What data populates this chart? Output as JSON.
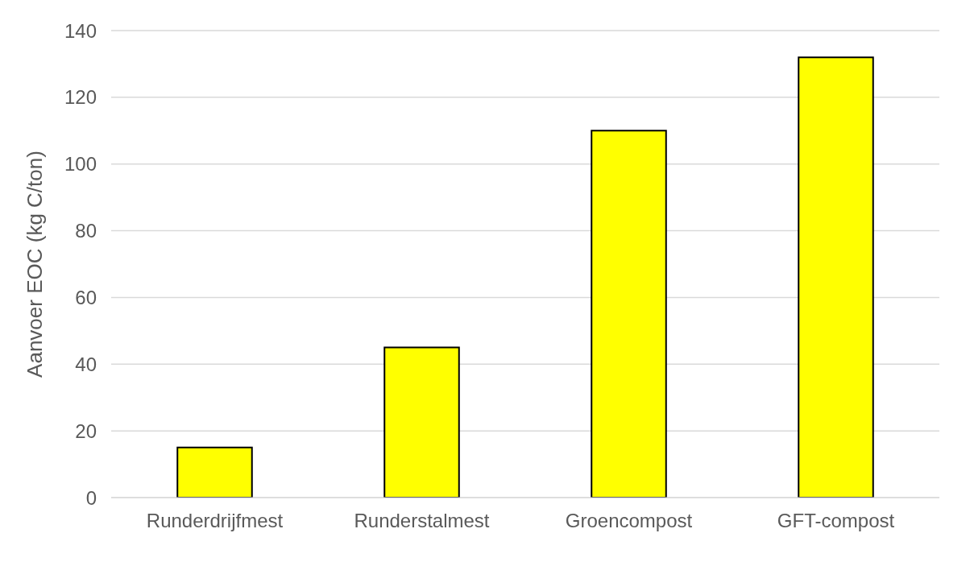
{
  "chart_data": {
    "type": "bar",
    "ylabel": "Aanvoer EOC (kg C/ton)",
    "categories": [
      "Runderdrijfmest",
      "Runderstalmest",
      "Groencompost",
      "GFT-compost"
    ],
    "values": [
      15,
      45,
      110,
      132
    ],
    "color": "#ffff00",
    "ylim": [
      0,
      140
    ],
    "yticks": [
      0,
      20,
      40,
      60,
      80,
      100,
      120,
      140
    ],
    "grid": "y"
  }
}
